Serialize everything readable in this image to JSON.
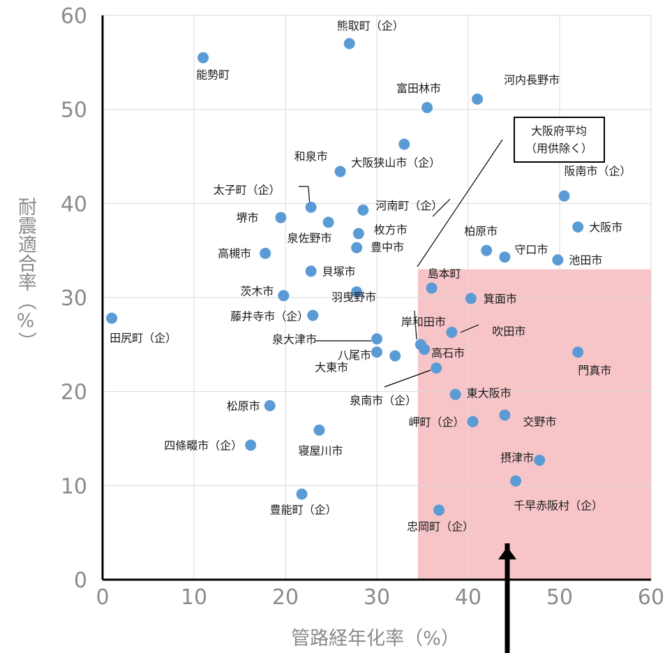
{
  "chart_data": {
    "type": "scatter",
    "xlabel": "管路経年化率（%）",
    "ylabel": "耐震適合率（%）",
    "xlim": [
      0,
      60
    ],
    "ylim": [
      0,
      60
    ],
    "xticks": [
      "0",
      "10",
      "20",
      "30",
      "40",
      "50",
      "60"
    ],
    "yticks": [
      "0",
      "10",
      "20",
      "30",
      "40",
      "50",
      "60"
    ],
    "grid": true,
    "colors": {
      "point": "#5b9bd5",
      "highlight": "#f7c5c8",
      "grid": "#d9d9d9",
      "axis": "#000000"
    },
    "highlight_region": {
      "x": [
        34.5,
        60
      ],
      "y": [
        0,
        33
      ]
    },
    "average_label": [
      "大阪府平均",
      "（用供除く）"
    ],
    "average_point": {
      "x": 34.5,
      "y": 33
    },
    "points": [
      {
        "name": "熊取町（企）",
        "x": 27,
        "y": 57
      },
      {
        "name": "能勢町",
        "x": 11,
        "y": 55.5
      },
      {
        "name": "富田林市",
        "x": 35.5,
        "y": 50.2
      },
      {
        "name": "河内長野市",
        "x": 41,
        "y": 51.1
      },
      {
        "name": "大阪狭山市（企）",
        "x": 33,
        "y": 46.3
      },
      {
        "name": "和泉市",
        "x": 26,
        "y": 43.4
      },
      {
        "name": "阪南市（企）",
        "x": 50.5,
        "y": 40.8
      },
      {
        "name": "太子町（企）",
        "x": 22.8,
        "y": 39.6
      },
      {
        "name": "堺市",
        "x": 19.5,
        "y": 38.5
      },
      {
        "name": "泉佐野市",
        "x": 24.7,
        "y": 38
      },
      {
        "name": "河南町（企）",
        "x": 28.5,
        "y": 39.3
      },
      {
        "name": "枚方市",
        "x": 28,
        "y": 36.8
      },
      {
        "name": "豊中市",
        "x": 27.8,
        "y": 35.3
      },
      {
        "name": "高槻市",
        "x": 17.8,
        "y": 34.7
      },
      {
        "name": "大阪市",
        "x": 52,
        "y": 37.5
      },
      {
        "name": "柏原市",
        "x": 42,
        "y": 35
      },
      {
        "name": "守口市",
        "x": 44,
        "y": 34.3
      },
      {
        "name": "池田市",
        "x": 49.8,
        "y": 34
      },
      {
        "name": "貝塚市",
        "x": 22.8,
        "y": 32.8
      },
      {
        "name": "島本町",
        "x": 36,
        "y": 31
      },
      {
        "name": "茨木市",
        "x": 19.8,
        "y": 30.2
      },
      {
        "name": "羽曳野市",
        "x": 27.8,
        "y": 30.6
      },
      {
        "name": "箕面市",
        "x": 40.3,
        "y": 29.9
      },
      {
        "name": "田尻町（企）",
        "x": 1,
        "y": 27.8
      },
      {
        "name": "藤井寺市（企）",
        "x": 23,
        "y": 28.1
      },
      {
        "name": "岸和田市",
        "x": 34.8,
        "y": 25
      },
      {
        "name": "吹田市",
        "x": 38.2,
        "y": 26.3
      },
      {
        "name": "泉大津市",
        "x": 30,
        "y": 25.6
      },
      {
        "name": "高石市",
        "x": 35.2,
        "y": 24.5
      },
      {
        "name": "八尾市",
        "x": 30,
        "y": 24.2
      },
      {
        "name": "大東市",
        "x": 32,
        "y": 23.8
      },
      {
        "name": "門真市",
        "x": 52,
        "y": 24.2
      },
      {
        "name": "泉南市（企）",
        "x": 36.5,
        "y": 22.5
      },
      {
        "name": "東大阪市",
        "x": 38.6,
        "y": 19.7
      },
      {
        "name": "松原市",
        "x": 18.3,
        "y": 18.5
      },
      {
        "name": "岬町（企）",
        "x": 40.5,
        "y": 16.8
      },
      {
        "name": "交野市",
        "x": 44,
        "y": 17.5
      },
      {
        "name": "四條畷市（企）",
        "x": 16.2,
        "y": 14.3
      },
      {
        "name": "寝屋川市",
        "x": 23.7,
        "y": 15.9
      },
      {
        "name": "摂津市",
        "x": 47.8,
        "y": 12.7
      },
      {
        "name": "千早赤阪村（企）",
        "x": 45.2,
        "y": 10.5
      },
      {
        "name": "豊能町（企）",
        "x": 21.8,
        "y": 9.1
      },
      {
        "name": "忠岡町（企）",
        "x": 36.8,
        "y": 7.4
      }
    ]
  }
}
